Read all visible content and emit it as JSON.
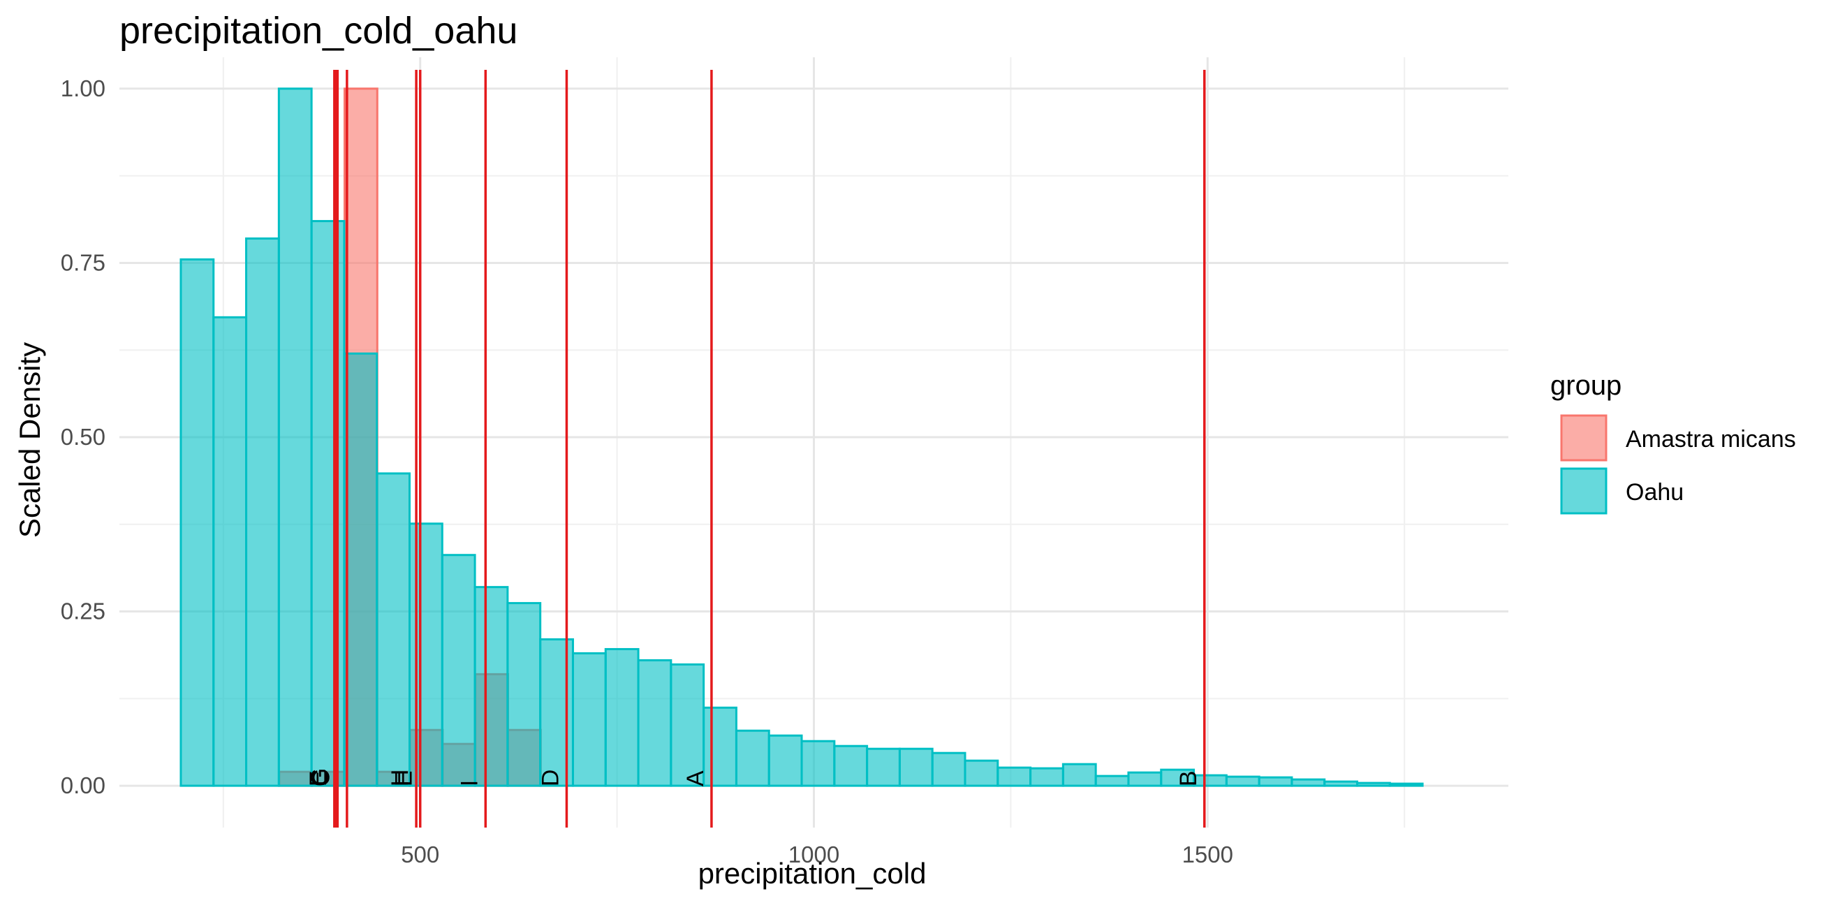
{
  "chart_data": {
    "type": "bar",
    "title": "precipitation_cold_oahu",
    "xlabel": "precipitation_cold",
    "ylabel": "Scaled Density",
    "xlim": [
      118,
      1882
    ],
    "ylim": [
      -0.06,
      1.045
    ],
    "x_ticks": [
      500,
      1000,
      1500
    ],
    "y_ticks": [
      0.0,
      0.25,
      0.5,
      0.75,
      1.0
    ],
    "y_tick_labels": [
      "0.00",
      "0.25",
      "0.50",
      "0.75",
      "1.00"
    ],
    "grid": true,
    "legend_placement": "right",
    "legend_title": "group",
    "bin_width": 41.5,
    "series": [
      {
        "name": "Amastra micans",
        "fill": "#F8766D",
        "bin_starts": [
          321,
          362.5,
          404,
          445.5,
          487,
          528.5,
          570,
          611.5
        ],
        "values": [
          0.02,
          0.02,
          1.0,
          0.02,
          0.08,
          0.06,
          0.16,
          0.08
        ]
      },
      {
        "name": "Oahu",
        "fill": "#00BFC4",
        "bin_starts": [
          196,
          237.5,
          279,
          320.5,
          362,
          403.5,
          445,
          486.5,
          528,
          569.5,
          611,
          652.5,
          694,
          735.5,
          777,
          818.5,
          860,
          901.5,
          943,
          984.5,
          1026,
          1067.5,
          1109,
          1150.5,
          1192,
          1233.5,
          1275,
          1316.5,
          1358,
          1399.5,
          1441,
          1482.5,
          1524,
          1565.5,
          1607,
          1648.5,
          1690,
          1731.5
        ],
        "values": [
          0.755,
          0.672,
          0.785,
          1.0,
          0.81,
          0.62,
          0.448,
          0.376,
          0.331,
          0.285,
          0.262,
          0.21,
          0.19,
          0.196,
          0.18,
          0.174,
          0.112,
          0.079,
          0.072,
          0.064,
          0.057,
          0.053,
          0.053,
          0.047,
          0.036,
          0.026,
          0.025,
          0.031,
          0.014,
          0.019,
          0.023,
          0.015,
          0.013,
          0.012,
          0.009,
          0.006,
          0.004,
          0.003
        ]
      }
    ],
    "vlines": [
      {
        "x": 391,
        "label": "E"
      },
      {
        "x": 393,
        "label": "G"
      },
      {
        "x": 395,
        "label": "C"
      },
      {
        "x": 407,
        "label": ""
      },
      {
        "x": 495,
        "label": "H"
      },
      {
        "x": 500,
        "label": "E"
      },
      {
        "x": 583,
        "label": "I"
      },
      {
        "x": 686,
        "label": "D"
      },
      {
        "x": 870,
        "label": "A"
      },
      {
        "x": 1496,
        "label": "B"
      }
    ],
    "vline_color": "#E41A1C"
  }
}
